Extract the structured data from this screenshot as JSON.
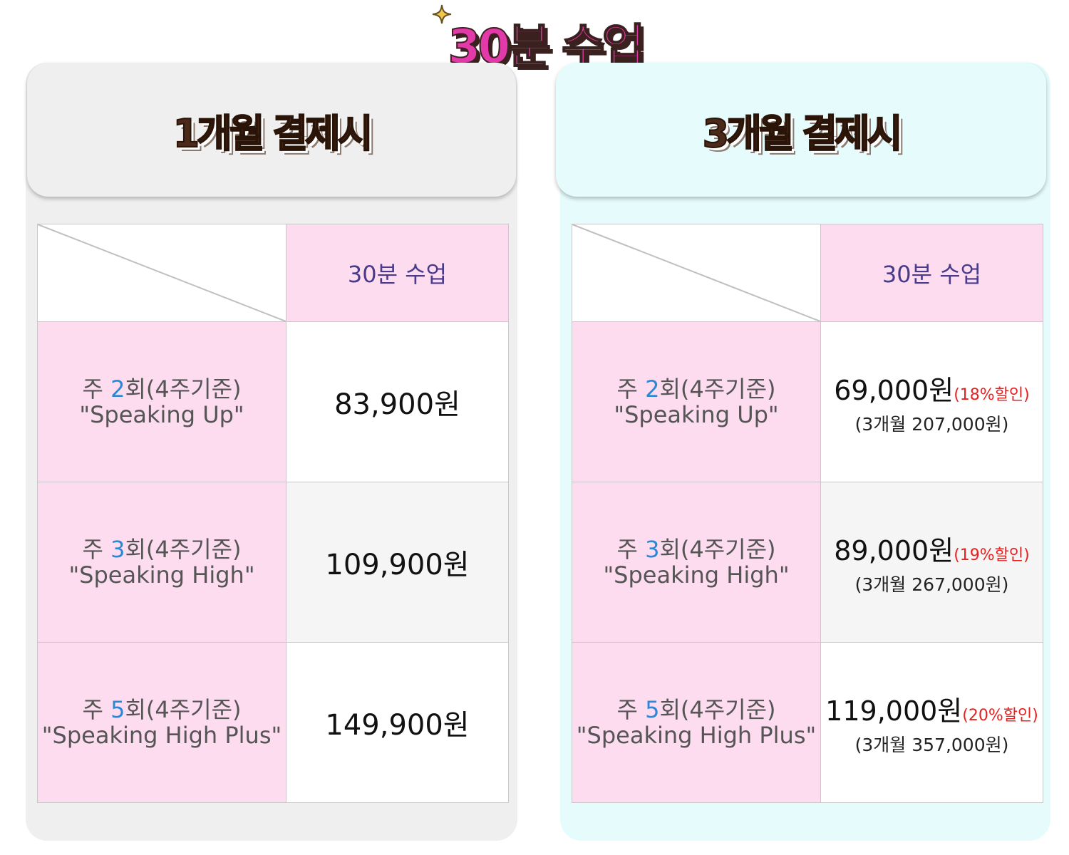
{
  "main_title": "30분 수업",
  "colors": {
    "title_pink": "#e23aa8",
    "title_brown": "#3b2020",
    "cell_pink": "#fcdcee",
    "left_panel_bg": "#efefef",
    "right_panel_bg": "#e6fcfc",
    "accent_blue": "#2a88d8",
    "discount_red": "#e82020"
  },
  "icons": {
    "sparkle": "sparkle-icon"
  },
  "panels": [
    {
      "title": "1개월 결제시",
      "column_header": "30분 수업",
      "rows": [
        {
          "prefix": "주 ",
          "count": "2",
          "suffix": "회(4주기준)",
          "plan": "\"Speaking Up\"",
          "price": "83,900원"
        },
        {
          "prefix": "주 ",
          "count": "3",
          "suffix": "회(4주기준)",
          "plan": "\"Speaking High\"",
          "price": "109,900원"
        },
        {
          "prefix": "주 ",
          "count": "5",
          "suffix": "회(4주기준)",
          "plan": "\"Speaking High Plus\"",
          "price": "149,900원"
        }
      ]
    },
    {
      "title": "3개월 결제시",
      "column_header": "30분 수업",
      "rows": [
        {
          "prefix": "주 ",
          "count": "2",
          "suffix": "회(4주기준)",
          "plan": "\"Speaking Up\"",
          "price": "69,000원",
          "discount": "(18%할인)",
          "total": "(3개월 207,000원)"
        },
        {
          "prefix": "주 ",
          "count": "3",
          "suffix": "회(4주기준)",
          "plan": "\"Speaking High\"",
          "price": "89,000원",
          "discount": "(19%할인)",
          "total": "(3개월 267,000원)"
        },
        {
          "prefix": "주 ",
          "count": "5",
          "suffix": "회(4주기준)",
          "plan": "\"Speaking High Plus\"",
          "price": "119,000원",
          "discount": "(20%할인)",
          "total": "(3개월 357,000원)"
        }
      ]
    }
  ]
}
